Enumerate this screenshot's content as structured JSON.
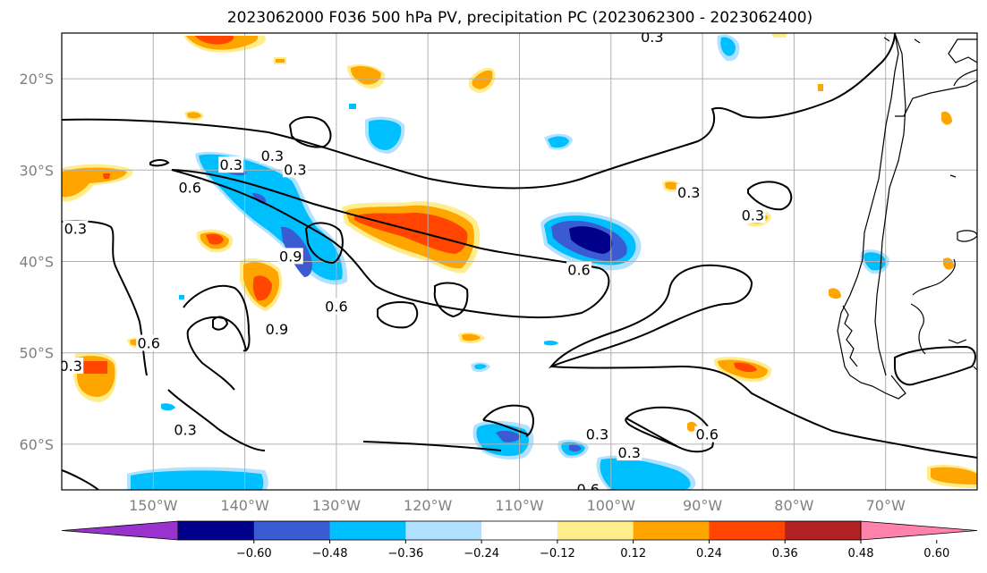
{
  "title": "2023062000 F036 500 hPa PV, precipitation PC (2023062300 - 2023062400)",
  "map": {
    "lon_range": [
      -160,
      -60
    ],
    "lat_range": [
      -65,
      -15
    ],
    "lat_ticks": [
      {
        "value": -20,
        "label": "20°S"
      },
      {
        "value": -30,
        "label": "30°S"
      },
      {
        "value": -40,
        "label": "40°S"
      },
      {
        "value": -50,
        "label": "50°S"
      },
      {
        "value": -60,
        "label": "60°S"
      }
    ],
    "lon_ticks": [
      {
        "value": -150,
        "label": "150°W"
      },
      {
        "value": -140,
        "label": "140°W"
      },
      {
        "value": -130,
        "label": "130°W"
      },
      {
        "value": -120,
        "label": "120°W"
      },
      {
        "value": -110,
        "label": "110°W"
      },
      {
        "value": -100,
        "label": "100°W"
      },
      {
        "value": -90,
        "label": "90°W"
      },
      {
        "value": -80,
        "label": "80°W"
      },
      {
        "value": -70,
        "label": "70°W"
      }
    ],
    "grid": true,
    "contour_labels": [
      {
        "text": "0.3",
        "lon": -158.5,
        "lat": -36.5
      },
      {
        "text": "0.3",
        "lon": -141.5,
        "lat": -29.5
      },
      {
        "text": "0.3",
        "lon": -137,
        "lat": -28.5
      },
      {
        "text": "0.3",
        "lon": -134.5,
        "lat": -30.0
      },
      {
        "text": "0.6",
        "lon": -146,
        "lat": -32.0
      },
      {
        "text": "0.9",
        "lon": -135,
        "lat": -39.5
      },
      {
        "text": "0.6",
        "lon": -130,
        "lat": -45.0
      },
      {
        "text": "0.9",
        "lon": -136.5,
        "lat": -47.5
      },
      {
        "text": "0.6",
        "lon": -150.5,
        "lat": -49.0
      },
      {
        "text": "0.3",
        "lon": -159,
        "lat": -51.5
      },
      {
        "text": "0.3",
        "lon": -146.5,
        "lat": -58.5
      },
      {
        "text": "0.3",
        "lon": -101.5,
        "lat": -59.0
      },
      {
        "text": "0.3",
        "lon": -95.5,
        "lat": -15.5
      },
      {
        "text": "0.3",
        "lon": -91.5,
        "lat": -32.5
      },
      {
        "text": "0.6",
        "lon": -103.5,
        "lat": -41.0
      },
      {
        "text": "0.6",
        "lon": -89.5,
        "lat": -59.0
      },
      {
        "text": "0.3",
        "lon": -98,
        "lat": -61.0
      },
      {
        "text": "0.6",
        "lon": -102.5,
        "lat": -65.0
      },
      {
        "text": "0.3",
        "lon": -84.5,
        "lat": -35.0
      }
    ]
  },
  "colorbar": {
    "levels": [
      "-0.60",
      "−0.48",
      "−0.36",
      "−0.24",
      "−0.12",
      "0.12",
      "0.24",
      "0.36",
      "0.48",
      "0.60"
    ],
    "level_labels": [
      "−0.60",
      "−0.48",
      "−0.36",
      "−0.24",
      "−0.12",
      "0.12",
      "0.24",
      "0.36",
      "0.48",
      "0.60"
    ],
    "colors": [
      "#9a32cd",
      "#00008b",
      "#3a5bd1",
      "#00bfff",
      "#b0e2ff",
      "#ffffff",
      "#ffec8b",
      "#ffa500",
      "#ff4500",
      "#b22222",
      "#ff82ab"
    ]
  },
  "colors": {
    "pos1": "#ffec8b",
    "pos2": "#ffa500",
    "pos3": "#ff4500",
    "neg1": "#b0e2ff",
    "neg2": "#00bfff",
    "neg3": "#3a5bd1",
    "neg4": "#00008b"
  }
}
